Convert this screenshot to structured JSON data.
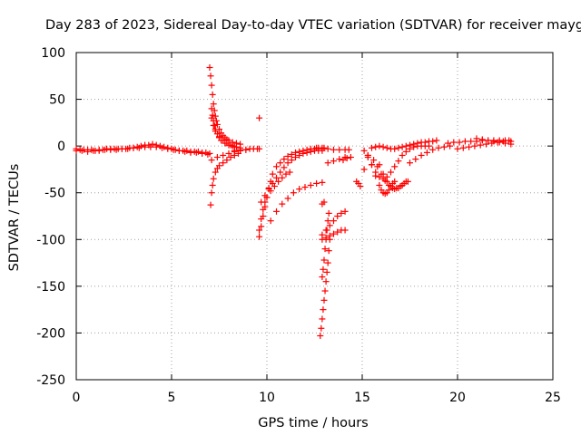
{
  "chart_data": {
    "type": "scatter",
    "title": "Day 283 of 2023, Sidereal Day-to-day VTEC variation (SDTVAR) for receiver mayg",
    "xlabel": "GPS time / hours",
    "ylabel": "SDTVAR / TECUs",
    "xlim": [
      0,
      25
    ],
    "ylim": [
      -250,
      100
    ],
    "xticks": [
      0,
      5,
      10,
      15,
      20,
      25
    ],
    "yticks": [
      -250,
      -200,
      -150,
      -100,
      -50,
      0,
      50,
      100
    ],
    "x_tick_labels": [
      "0",
      "5",
      "10",
      "15",
      "20",
      "25"
    ],
    "y_tick_labels": [
      "-250",
      "-200",
      "-150",
      "-100",
      "-50",
      "0",
      "50",
      "100"
    ],
    "grid": true,
    "marker": "+",
    "color": "#ff0000",
    "series": [
      {
        "x": [
          0.0,
          0.2,
          0.4,
          0.6,
          0.8,
          1.0,
          1.2,
          1.4,
          1.6,
          1.8,
          2.0,
          2.2,
          2.4,
          2.6,
          2.8,
          3.0,
          3.2,
          3.4,
          3.6,
          3.8,
          4.0,
          4.2,
          4.4,
          4.6,
          4.8,
          5.0,
          5.2,
          5.4,
          5.6,
          5.8,
          6.0,
          6.2,
          6.4,
          6.6,
          6.8,
          7.0,
          0.0,
          0.3,
          0.6,
          0.9,
          1.2,
          1.5,
          1.8,
          2.1,
          2.4,
          2.7,
          3.0,
          3.3,
          3.6,
          3.9,
          4.2,
          4.5,
          4.8,
          5.1,
          5.4,
          5.7,
          6.0,
          6.3,
          6.6,
          6.9,
          7.0,
          7.05,
          7.1,
          7.15,
          7.2,
          7.25,
          7.3,
          7.35,
          7.4,
          7.5,
          7.6,
          7.7,
          7.8,
          7.9,
          8.0,
          8.2,
          8.4,
          8.6,
          7.1,
          7.15,
          7.2,
          7.25,
          7.3,
          7.4,
          7.5,
          7.6,
          7.8,
          8.0,
          8.2,
          8.4,
          7.1,
          7.2,
          7.3,
          7.5,
          7.7,
          7.9,
          8.1,
          8.3,
          8.6,
          7.05,
          7.1,
          7.15,
          7.2,
          7.3,
          7.4,
          7.5,
          7.7,
          7.9,
          8.1,
          8.3,
          8.5,
          8.3,
          8.6,
          8.9,
          9.1,
          9.3,
          9.5,
          9.6,
          7.1,
          7.4,
          7.7,
          8.0,
          8.3,
          8.6,
          8.9,
          9.6,
          9.6,
          9.7,
          9.8,
          9.9,
          10.0,
          10.1,
          10.2,
          10.3,
          10.5,
          10.7,
          10.9,
          11.1,
          11.3,
          11.5,
          11.7,
          11.9,
          12.1,
          12.3,
          12.5,
          12.7,
          12.9,
          13.0,
          9.6,
          9.7,
          9.8,
          9.9,
          10.0,
          10.2,
          10.4,
          10.6,
          10.8,
          11.0,
          11.2,
          9.7,
          9.9,
          10.1,
          10.3,
          10.5,
          10.7,
          10.9,
          11.1,
          11.3,
          11.5,
          11.7,
          11.9,
          12.1,
          12.3,
          12.5,
          12.7,
          12.9,
          10.2,
          10.5,
          10.8,
          11.1,
          11.4,
          11.7,
          12.0,
          12.3,
          12.6,
          12.9,
          12.6,
          12.9,
          13.2,
          13.5,
          13.8,
          14.1,
          14.3,
          12.8,
          12.85,
          12.9,
          12.95,
          13.0,
          13.05,
          13.1,
          13.15,
          13.2,
          13.25,
          13.3,
          12.9,
          12.95,
          13.0,
          13.05,
          13.1,
          13.15,
          13.2,
          13.25,
          12.9,
          13.1,
          13.3,
          13.5,
          13.7,
          13.9,
          14.1,
          12.9,
          13.1,
          13.3,
          13.5,
          13.7,
          13.9,
          14.1,
          13.2,
          13.5,
          13.8,
          14.1,
          12.9,
          13.0,
          14.0,
          14.2,
          14.4,
          14.7,
          14.8,
          14.9,
          15.1,
          15.3,
          15.5,
          15.7,
          15.9,
          16.1,
          16.3,
          16.5,
          16.7,
          16.9,
          17.1,
          17.3,
          17.5,
          17.7,
          17.9,
          18.1,
          18.3,
          18.5,
          18.7,
          18.9,
          15.1,
          15.3,
          15.5,
          15.7,
          15.9,
          16.1,
          16.3,
          16.5,
          16.7,
          16.9,
          17.1,
          17.3,
          17.5,
          17.7,
          17.9,
          18.1,
          18.3,
          18.5,
          15.3,
          15.5,
          15.7,
          15.9,
          16.0,
          16.1,
          16.2,
          16.3,
          16.4,
          16.5,
          16.6,
          16.7,
          15.6,
          15.8,
          16.0,
          16.2,
          16.4,
          16.6,
          16.8,
          17.0,
          17.2,
          17.4,
          15.9,
          16.1,
          16.3,
          16.5,
          16.7,
          16.9,
          17.1,
          17.3,
          17.5,
          17.8,
          18.1,
          18.4,
          18.7,
          19.0,
          19.3,
          19.6,
          19.5,
          19.8,
          20.1,
          20.4,
          20.7,
          21.0,
          21.3,
          21.6,
          21.9,
          22.2,
          22.5,
          22.8,
          20.0,
          20.3,
          20.6,
          20.9,
          21.2,
          21.5,
          21.8,
          22.1,
          22.4,
          22.7,
          21.0,
          21.3,
          21.6,
          21.9,
          22.2,
          22.5,
          22.8
        ],
        "y": [
          -3,
          -4,
          -4,
          -4,
          -4,
          -5,
          -4,
          -4,
          -3,
          -3,
          -3,
          -3,
          -3,
          -3,
          -2,
          -2,
          -1,
          0,
          1,
          1,
          2,
          1,
          0,
          -1,
          -2,
          -3,
          -4,
          -5,
          -5,
          -5,
          -6,
          -6,
          -6,
          -7,
          -7,
          -8,
          -5,
          -5,
          -6,
          -5,
          -5,
          -4,
          -4,
          -4,
          -3,
          -3,
          -2,
          -2,
          -1,
          -1,
          -1,
          -2,
          -3,
          -4,
          -5,
          -6,
          -7,
          -7,
          -8,
          -9,
          84,
          75,
          65,
          55,
          45,
          38,
          32,
          27,
          23,
          18,
          14,
          11,
          9,
          7,
          6,
          4,
          3,
          2,
          40,
          33,
          27,
          22,
          18,
          13,
          9,
          6,
          3,
          1,
          0,
          -1,
          30,
          22,
          16,
          10,
          6,
          3,
          1,
          -1,
          -2,
          -63,
          -50,
          -42,
          -35,
          -28,
          -24,
          -21,
          -18,
          -15,
          -12,
          -10,
          -8,
          -5,
          -4,
          -4,
          -3,
          -3,
          -3,
          -3,
          -15,
          -12,
          -10,
          -8,
          -6,
          -5,
          -4,
          30,
          -97,
          -86,
          -75,
          -65,
          -55,
          -45,
          -38,
          -30,
          -22,
          -18,
          -14,
          -11,
          -9,
          -7,
          -6,
          -5,
          -4,
          -3,
          -3,
          -2,
          -2,
          -2,
          -90,
          -78,
          -68,
          -60,
          -55,
          -48,
          -43,
          -38,
          -34,
          -30,
          -28,
          -60,
          -53,
          -46,
          -40,
          -34,
          -28,
          -23,
          -18,
          -15,
          -12,
          -10,
          -8,
          -7,
          -6,
          -5,
          -5,
          -5,
          -80,
          -70,
          -62,
          -56,
          -50,
          -46,
          -44,
          -42,
          -40,
          -39,
          -2,
          -3,
          -3,
          -4,
          -4,
          -4,
          -4,
          -203,
          -195,
          -185,
          -175,
          -165,
          -155,
          -145,
          -135,
          -125,
          -112,
          -100,
          -140,
          -132,
          -122,
          -110,
          -100,
          -90,
          -80,
          -72,
          -95,
          -90,
          -85,
          -80,
          -75,
          -72,
          -70,
          -100,
          -98,
          -96,
          -94,
          -92,
          -90,
          -90,
          -18,
          -16,
          -14,
          -12,
          -62,
          -60,
          -15,
          -13,
          -12,
          -38,
          -40,
          -43,
          -25,
          -10,
          -2,
          -1,
          0,
          -1,
          -2,
          -3,
          -3,
          -2,
          -1,
          0,
          1,
          2,
          3,
          4,
          4,
          5,
          5,
          6,
          -5,
          -12,
          -20,
          -28,
          -33,
          -35,
          -33,
          -28,
          -22,
          -16,
          -10,
          -6,
          -3,
          -1,
          0,
          0,
          0,
          0,
          -10,
          -20,
          -32,
          -42,
          -47,
          -50,
          -51,
          -50,
          -47,
          -43,
          -40,
          -38,
          -15,
          -22,
          -30,
          -37,
          -42,
          -45,
          -45,
          -43,
          -40,
          -38,
          -20,
          -30,
          -38,
          -43,
          -46,
          -45,
          -42,
          -38,
          -18,
          -14,
          -10,
          -7,
          -4,
          -2,
          -1,
          0,
          3,
          4,
          4,
          5,
          5,
          5,
          6,
          6,
          6,
          6,
          6,
          5,
          -3,
          -2,
          -1,
          0,
          1,
          2,
          3,
          4,
          5,
          6,
          8,
          7,
          6,
          5,
          4,
          3,
          2
        ]
      }
    ]
  }
}
